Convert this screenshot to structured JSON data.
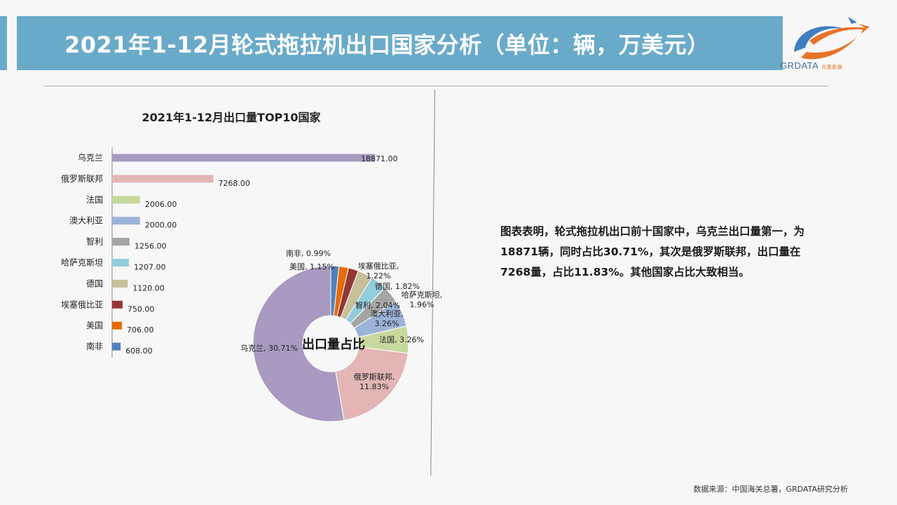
{
  "header": {
    "title": "2021年1-12月轮式拖拉机出口国家分析（单位：辆，万美元）",
    "logo_text": "GRDATA",
    "logo_cn": "共策数据"
  },
  "colors": {
    "title_bar": "#6aaac9",
    "background": "#f7f7f7",
    "series": [
      "#a89ac0",
      "#e3b6b5",
      "#c9d89e",
      "#9bb3d7",
      "#a5a5a5",
      "#92cddc",
      "#c7bf9a",
      "#953735",
      "#e46c0a",
      "#4f81bd"
    ]
  },
  "chart_data": [
    {
      "type": "bar",
      "orientation": "horizontal",
      "title": "2021年1-12月出口量TOP10国家",
      "categories": [
        "乌克兰",
        "俄罗斯联邦",
        "法国",
        "澳大利亚",
        "智利",
        "哈萨克斯坦",
        "德国",
        "埃塞俄比亚",
        "美国",
        "南非"
      ],
      "values": [
        18871,
        7268,
        2006,
        2000,
        1256,
        1207,
        1120,
        750,
        706,
        608
      ],
      "value_labels": [
        "18871.00",
        "7268.00",
        "2006.00",
        "2000.00",
        "1256.00",
        "1207.00",
        "1120.00",
        "750.00",
        "706.00",
        "608.00"
      ],
      "xlim": [
        0,
        18871
      ]
    },
    {
      "type": "pie",
      "variant": "donut",
      "title": "出口量占比",
      "slices": [
        {
          "label": "南非, 0.99%",
          "value": 0.99
        },
        {
          "label": "美国, 1.15%",
          "value": 1.15
        },
        {
          "label": "埃塞俄比亚, 1.22%",
          "value": 1.22
        },
        {
          "label": "德国, 1.82%",
          "value": 1.82
        },
        {
          "label": "哈萨克斯坦, 1.96%",
          "value": 1.96
        },
        {
          "label": "智利, 2.04%",
          "value": 2.04
        },
        {
          "label": "澳大利亚, 3.26%",
          "value": 3.26
        },
        {
          "label": "法国, 3.26%",
          "value": 3.26
        },
        {
          "label": "俄罗斯联邦, 11.83%",
          "value": 11.83
        },
        {
          "label": "乌克兰, 30.71%",
          "value": 30.71
        }
      ],
      "slice_colors": [
        "#4f81bd",
        "#e46c0a",
        "#953735",
        "#c7bf9a",
        "#92cddc",
        "#a5a5a5",
        "#9bb3d7",
        "#c9d89e",
        "#e3b6b5",
        "#a89ac0"
      ]
    }
  ],
  "analysis": {
    "text": "图表表明，轮式拖拉机出口前十国家中，乌克兰出口量第一，为18871辆，同时占比30.71%，其次是俄罗斯联邦，出口量在7268量，占比11.83%。其他国家占比大致相当。"
  },
  "footer": {
    "source": "数据来源：中国海关总署，GRDATA研究分析"
  }
}
